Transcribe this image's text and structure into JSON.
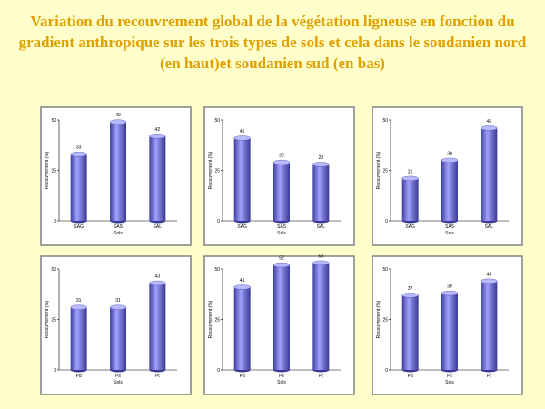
{
  "title": "Variation du recouvrement global de la végétation ligneuse en fonction du gradient anthropique  sur les trois types de sols et cela dans le soudanien nord (en haut)et soudanien sud (en bas)",
  "chart_data": [
    {
      "type": "bar",
      "y_label": "Recouvrement (%)",
      "x_label": "Sols",
      "categories": [
        "SAG",
        "SAS",
        "SAL"
      ],
      "values": [
        33,
        49,
        42
      ],
      "color": "#7b7be0",
      "ylim": [
        0,
        50
      ],
      "yticks": [
        0,
        25,
        50
      ]
    },
    {
      "type": "bar",
      "y_label": "Recouvrement (%)",
      "x_label": "Sols",
      "categories": [
        "SAG",
        "SAS",
        "SAL"
      ],
      "values": [
        41,
        29,
        28
      ],
      "color": "#7b7be0",
      "ylim": [
        0,
        50
      ],
      "yticks": [
        0,
        25,
        50
      ]
    },
    {
      "type": "bar",
      "y_label": "Recouvrement (%)",
      "x_label": "Sols",
      "categories": [
        "SAG",
        "SAS",
        "SAL"
      ],
      "values": [
        21,
        30,
        46
      ],
      "color": "#7b7be0",
      "ylim": [
        0,
        50
      ],
      "yticks": [
        0,
        25,
        50
      ]
    },
    {
      "type": "bar",
      "y_label": "Recouvrement (%)",
      "x_label": "Sols",
      "categories": [
        "Pd",
        "Ps",
        "Pt"
      ],
      "values": [
        31,
        31,
        43
      ],
      "color": "#7b7be0",
      "ylim": [
        0,
        50
      ],
      "yticks": [
        0,
        25,
        50
      ]
    },
    {
      "type": "bar",
      "y_label": "Recouvrement (%)",
      "x_label": "Sols",
      "categories": [
        "Pd",
        "Ps",
        "Pt"
      ],
      "values": [
        41,
        52,
        53
      ],
      "color": "#7b7be0",
      "ylim": [
        0,
        50
      ],
      "yticks": [
        0,
        25,
        50
      ]
    },
    {
      "type": "bar",
      "y_label": "Recouvrement (%)",
      "x_label": "Sols",
      "categories": [
        "Pd",
        "Ps",
        "Pt"
      ],
      "values": [
        37,
        38,
        44
      ],
      "color": "#7b7be0",
      "ylim": [
        0,
        50
      ],
      "yticks": [
        0,
        25,
        50
      ]
    }
  ]
}
